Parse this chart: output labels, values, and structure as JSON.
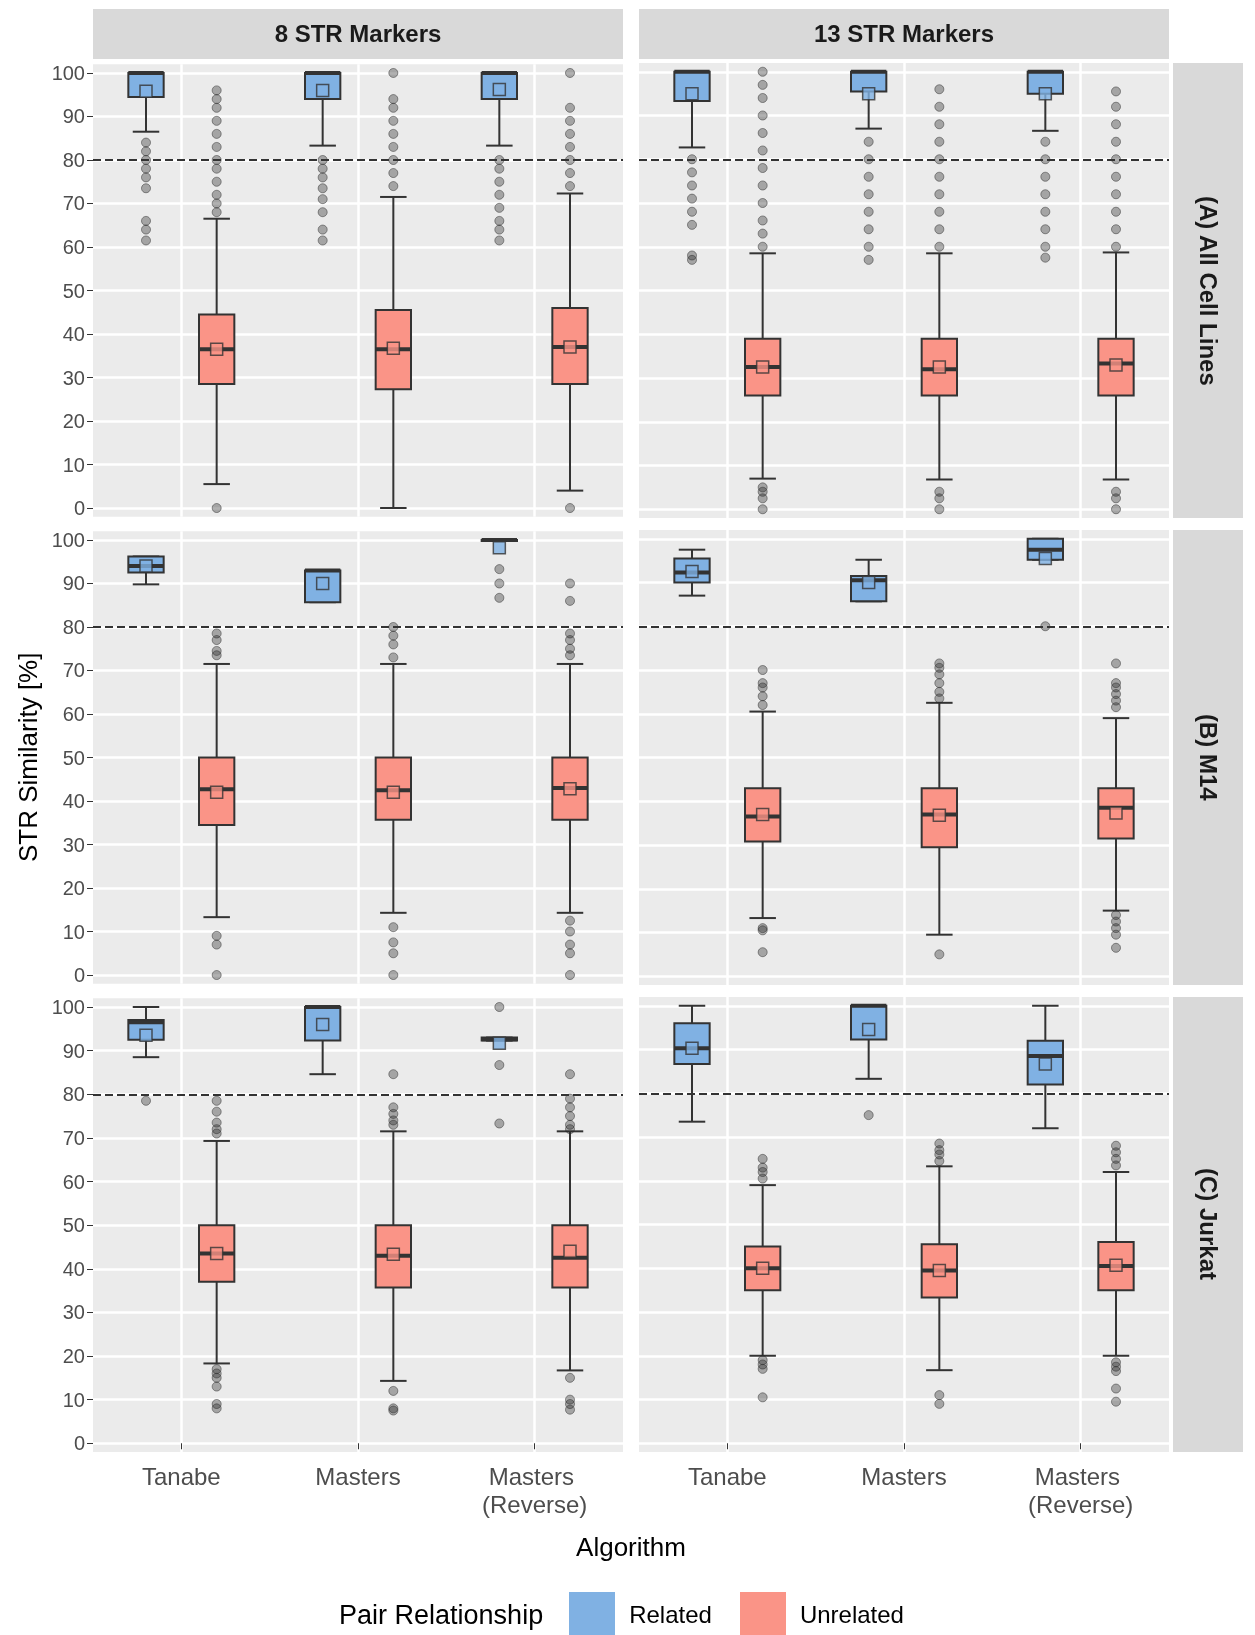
{
  "chart_data": [
    {
      "type": "box",
      "title": "8 STR Markers",
      "categories": [
        "Tanabe",
        "Masters",
        "Masters (Reverse)"
      ],
      "ylim": [
        -2,
        102
      ],
      "yticks": [
        0,
        10,
        20,
        30,
        40,
        50,
        60,
        70,
        80,
        90,
        100
      ],
      "grid": true,
      "tick_labels": "y",
      "ref_lines": [
        {
          "axis": "y",
          "value": 80,
          "color": "#333333",
          "line_style": "dashed"
        }
      ],
      "series": [
        {
          "color": "#80b1e3",
          "boxes": [
            {
              "low": 86.5,
              "q1": 94.5,
              "median": 100,
              "q3": 100,
              "high": 100,
              "mean": 95.8,
              "outliers": [
                84,
                82,
                80,
                78,
                76,
                73.5,
                66,
                64,
                61.5
              ]
            },
            {
              "low": 83.3,
              "q1": 94,
              "median": 100,
              "q3": 100,
              "high": 100,
              "mean": 96,
              "outliers": [
                80,
                78,
                76,
                73.5,
                71,
                68,
                64,
                61.5
              ]
            },
            {
              "low": 83.3,
              "q1": 94,
              "median": 100,
              "q3": 100,
              "high": 100,
              "mean": 96.2,
              "outliers": [
                80,
                78,
                75,
                72,
                69,
                66,
                64,
                61.5
              ]
            }
          ]
        },
        {
          "color": "#fa9487",
          "boxes": [
            {
              "low": 5.5,
              "q1": 28.5,
              "median": 36.5,
              "q3": 44.5,
              "high": 66.5,
              "mean": 36.5,
              "outliers": [
                0,
                68,
                70,
                72,
                75,
                78,
                80,
                83,
                86,
                89,
                92,
                94,
                96
              ]
            },
            {
              "low": 0,
              "q1": 27.3,
              "median": 36.5,
              "q3": 45.5,
              "high": 71.5,
              "mean": 36.7,
              "outliers": [
                74,
                77,
                80,
                83,
                86,
                89,
                92,
                94,
                100
              ]
            },
            {
              "low": 4,
              "q1": 28.5,
              "median": 37,
              "q3": 46,
              "high": 72.3,
              "mean": 37,
              "outliers": [
                0,
                74,
                77,
                80,
                83,
                86,
                89,
                92,
                100
              ]
            }
          ]
        }
      ]
    },
    {
      "type": "box",
      "title": "13 STR Markers",
      "y2label": "(A) All Cell Lines",
      "categories": [
        "Tanabe",
        "Masters",
        "Masters (Reverse)"
      ],
      "ylim": [
        -2,
        102
      ],
      "yticks": [
        0,
        10,
        20,
        30,
        40,
        50,
        60,
        70,
        80,
        90,
        100
      ],
      "grid": true,
      "tick_labels": false,
      "ref_lines": [
        {
          "axis": "y",
          "value": 80,
          "color": "#333333",
          "line_style": "dashed"
        }
      ],
      "series": [
        {
          "color": "#80b1e3",
          "boxes": [
            {
              "low": 82.7,
              "q1": 93.3,
              "median": 100,
              "q3": 100,
              "high": 100,
              "mean": 95,
              "outliers": [
                80,
                77,
                74,
                71,
                68,
                65,
                58,
                57
              ]
            },
            {
              "low": 87,
              "q1": 95.5,
              "median": 100,
              "q3": 100,
              "high": 100,
              "mean": 95,
              "outliers": [
                84,
                80,
                76,
                72,
                68,
                64,
                60,
                57
              ]
            },
            {
              "low": 86.5,
              "q1": 95,
              "median": 100,
              "q3": 100,
              "high": 100,
              "mean": 95,
              "outliers": [
                84,
                80,
                76,
                72,
                68,
                64,
                60,
                57.5
              ]
            }
          ]
        },
        {
          "color": "#fa9487",
          "boxes": [
            {
              "low": 7,
              "q1": 26,
              "median": 32.5,
              "q3": 39,
              "high": 58.5,
              "mean": 32.5,
              "outliers": [
                0,
                2.5,
                4,
                5,
                60,
                63,
                66,
                70,
                74,
                78,
                82,
                86,
                90,
                94,
                97,
                100
              ]
            },
            {
              "low": 6.8,
              "q1": 26,
              "median": 32,
              "q3": 39,
              "high": 58.5,
              "mean": 32.5,
              "outliers": [
                0,
                2.5,
                4,
                60,
                64,
                68,
                72,
                76,
                80,
                84,
                88,
                92,
                96
              ]
            },
            {
              "low": 6.8,
              "q1": 26,
              "median": 33.3,
              "q3": 39,
              "high": 58.7,
              "mean": 33,
              "outliers": [
                0,
                2.5,
                4,
                60,
                64,
                68,
                72,
                76,
                80,
                84,
                88,
                92,
                95.5
              ]
            }
          ]
        }
      ]
    },
    {
      "type": "box",
      "ylabel": "STR Similarity [%]",
      "categories": [
        "Tanabe",
        "Masters",
        "Masters (Reverse)"
      ],
      "ylim": [
        -2,
        102
      ],
      "yticks": [
        0,
        10,
        20,
        30,
        40,
        50,
        60,
        70,
        80,
        90,
        100
      ],
      "grid": true,
      "tick_labels": "y",
      "ref_lines": [
        {
          "axis": "y",
          "value": 80,
          "color": "#333333",
          "line_style": "dashed"
        }
      ],
      "series": [
        {
          "color": "#80b1e3",
          "boxes": [
            {
              "low": 89.8,
              "q1": 92.5,
              "median": 94,
              "q3": 96.2,
              "high": 96.2,
              "mean": 94
            },
            {
              "low": 85.7,
              "q1": 85.7,
              "median": 93,
              "q3": 93,
              "high": 93,
              "mean": 90
            },
            {
              "low": 100,
              "q1": 100,
              "median": 100,
              "q3": 100,
              "high": 100,
              "mean": 98.2,
              "outliers": [
                86.7,
                90,
                93.3
              ]
            }
          ]
        },
        {
          "color": "#fa9487",
          "boxes": [
            {
              "low": 13.3,
              "q1": 34.5,
              "median": 42.7,
              "q3": 50,
              "high": 71.5,
              "mean": 42,
              "outliers": [
                0,
                7,
                9,
                73.5,
                74.5,
                77,
                78.5
              ]
            },
            {
              "low": 14.3,
              "q1": 35.7,
              "median": 42.5,
              "q3": 50,
              "high": 71.5,
              "mean": 42,
              "outliers": [
                0,
                5,
                7.5,
                11,
                73,
                76,
                78,
                80
              ]
            },
            {
              "low": 14.3,
              "q1": 35.7,
              "median": 43,
              "q3": 50,
              "high": 71.5,
              "mean": 42.8,
              "outliers": [
                0,
                5,
                7,
                10,
                12.5,
                73.5,
                75,
                77,
                78.5,
                86,
                90
              ]
            }
          ]
        }
      ]
    },
    {
      "type": "box",
      "y2label": "(B) M14",
      "categories": [
        "Tanabe",
        "Masters",
        "Masters (Reverse)"
      ],
      "ylim": [
        -2,
        102
      ],
      "yticks": [
        0,
        10,
        20,
        30,
        40,
        50,
        60,
        70,
        80,
        90,
        100
      ],
      "grid": true,
      "tick_labels": false,
      "ref_lines": [
        {
          "axis": "y",
          "value": 80,
          "color": "#333333",
          "line_style": "dashed"
        }
      ],
      "series": [
        {
          "color": "#80b1e3",
          "boxes": [
            {
              "low": 87,
              "q1": 90,
              "median": 92.3,
              "q3": 95.5,
              "high": 97.5,
              "mean": 92.5
            },
            {
              "low": 85.7,
              "q1": 85.7,
              "median": 90.5,
              "q3": 91.5,
              "high": 95.2,
              "mean": 90
            },
            {
              "low": 95.2,
              "q1": 95.2,
              "median": 97.5,
              "q3": 100,
              "high": 100,
              "mean": 95.5,
              "outliers": [
                80
              ]
            }
          ]
        },
        {
          "color": "#fa9487",
          "boxes": [
            {
              "low": 13.3,
              "q1": 30.8,
              "median": 36.5,
              "q3": 43,
              "high": 60.5,
              "mean": 37,
              "outliers": [
                5.5,
                10.5,
                11,
                62,
                64,
                66,
                67,
                70
              ]
            },
            {
              "low": 9.5,
              "q1": 29.5,
              "median": 37,
              "q3": 43,
              "high": 62.5,
              "mean": 36.8,
              "outliers": [
                5,
                63.5,
                65,
                67,
                69,
                70.5,
                71.5
              ]
            },
            {
              "low": 15,
              "q1": 31.5,
              "median": 38.5,
              "q3": 43,
              "high": 59,
              "mean": 37.3,
              "outliers": [
                6.5,
                9.5,
                11,
                12.5,
                14,
                61.5,
                63,
                64.5,
                66,
                67,
                71.5
              ]
            }
          ]
        }
      ]
    },
    {
      "type": "box",
      "xlabel": "Algorithm",
      "legend": "bottom",
      "legend_title": "Pair Relationship",
      "categories": [
        "Tanabe",
        "Masters",
        "Masters (Reverse)"
      ],
      "ylim": [
        -2,
        102
      ],
      "yticks": [
        0,
        10,
        20,
        30,
        40,
        50,
        60,
        70,
        80,
        90,
        100
      ],
      "grid": true,
      "ref_lines": [
        {
          "axis": "y",
          "value": 80,
          "color": "#333333",
          "line_style": "dashed"
        }
      ],
      "series": [
        {
          "name": "Related",
          "color": "#80b1e3",
          "boxes": [
            {
              "low": 88.5,
              "q1": 92.5,
              "median": 96.5,
              "q3": 97,
              "high": 100,
              "mean": 93.5,
              "outliers": [
                78.5
              ]
            },
            {
              "low": 84.6,
              "q1": 92.3,
              "median": 100,
              "q3": 100,
              "high": 100,
              "mean": 96
            },
            {
              "low": 92.3,
              "q1": 92.3,
              "median": 92.6,
              "q3": 93,
              "high": 93,
              "mean": 91.7,
              "outliers": [
                73.3,
                86.7,
                100
              ]
            }
          ]
        },
        {
          "name": "Unrelated",
          "color": "#fa9487",
          "boxes": [
            {
              "low": 18.3,
              "q1": 37,
              "median": 43.5,
              "q3": 50,
              "high": 69.3,
              "mean": 43.5,
              "outliers": [
                8,
                9,
                13,
                15,
                16,
                17,
                71,
                72,
                73.5,
                76,
                78.5
              ]
            },
            {
              "low": 14.3,
              "q1": 35.7,
              "median": 43,
              "q3": 50,
              "high": 71.5,
              "mean": 43.3,
              "outliers": [
                7.5,
                8,
                12,
                73,
                74,
                75.5,
                77,
                84.6
              ]
            },
            {
              "low": 16.7,
              "q1": 35.7,
              "median": 42.5,
              "q3": 50,
              "high": 71.5,
              "mean": 44,
              "outliers": [
                7.7,
                9,
                10,
                15,
                72,
                73,
                75,
                77,
                79,
                84.6
              ]
            }
          ]
        }
      ]
    },
    {
      "type": "box",
      "y2label": "(C) Jurkat",
      "categories": [
        "Tanabe",
        "Masters",
        "Masters (Reverse)"
      ],
      "ylim": [
        -2,
        102
      ],
      "yticks": [
        0,
        10,
        20,
        30,
        40,
        50,
        60,
        70,
        80,
        90,
        100
      ],
      "grid": true,
      "tick_labels": "x",
      "ref_lines": [
        {
          "axis": "y",
          "value": 80,
          "color": "#333333",
          "line_style": "dashed"
        }
      ],
      "series": [
        {
          "color": "#80b1e3",
          "boxes": [
            {
              "low": 73.5,
              "q1": 86.7,
              "median": 90.3,
              "q3": 96,
              "high": 100,
              "mean": 90.3
            },
            {
              "low": 83.3,
              "q1": 92.3,
              "median": 100,
              "q3": 100,
              "high": 100,
              "mean": 94.6,
              "outliers": [
                75
              ]
            },
            {
              "low": 72,
              "q1": 82,
              "median": 88.5,
              "q3": 92,
              "high": 100,
              "mean": 86.7
            }
          ]
        },
        {
          "color": "#fa9487",
          "boxes": [
            {
              "low": 20,
              "q1": 35,
              "median": 40,
              "q3": 45,
              "high": 59,
              "mean": 40,
              "outliers": [
                10.5,
                17,
                18,
                19,
                60.5,
                62,
                63,
                65
              ]
            },
            {
              "low": 16.7,
              "q1": 33.3,
              "median": 39.5,
              "q3": 45.5,
              "high": 63.3,
              "mean": 39.5,
              "outliers": [
                9,
                11,
                64.5,
                66,
                67,
                68.5
              ]
            },
            {
              "low": 20,
              "q1": 35,
              "median": 40.5,
              "q3": 46,
              "high": 62,
              "mean": 40.7,
              "outliers": [
                9.5,
                12.5,
                16.5,
                17.5,
                18.5,
                63.5,
                65,
                66.5,
                68
              ]
            }
          ]
        }
      ]
    }
  ]
}
